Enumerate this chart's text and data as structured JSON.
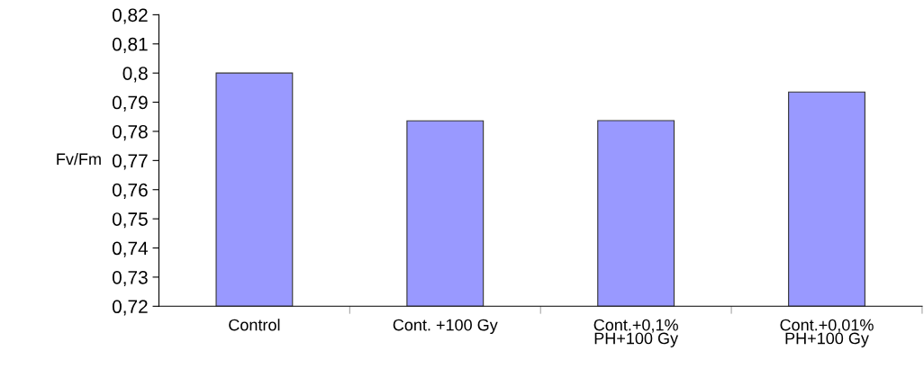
{
  "chart_data": {
    "type": "bar",
    "ylabel": "Fv/Fm",
    "categories": [
      "Control",
      "Cont. +100 Gy",
      "Cont.+0,1%\nPH+100 Gy",
      "Cont.+0,01%\nPH+100 Gy"
    ],
    "values": [
      0.8,
      0.7836,
      0.7837,
      0.7935
    ],
    "color": "#9999ff",
    "ylim": [
      0.72,
      0.82
    ],
    "yticks": [
      {
        "value": 0.72,
        "label": "0,72"
      },
      {
        "value": 0.73,
        "label": "0,73"
      },
      {
        "value": 0.74,
        "label": "0,74"
      },
      {
        "value": 0.75,
        "label": "0,75"
      },
      {
        "value": 0.76,
        "label": "0,76"
      },
      {
        "value": 0.77,
        "label": "0,77"
      },
      {
        "value": 0.78,
        "label": "0,78"
      },
      {
        "value": 0.79,
        "label": "0,79"
      },
      {
        "value": 0.8,
        "label": "0,8"
      },
      {
        "value": 0.81,
        "label": "0,81"
      },
      {
        "value": 0.82,
        "label": "0,82"
      }
    ],
    "grid": false,
    "legend": false
  }
}
